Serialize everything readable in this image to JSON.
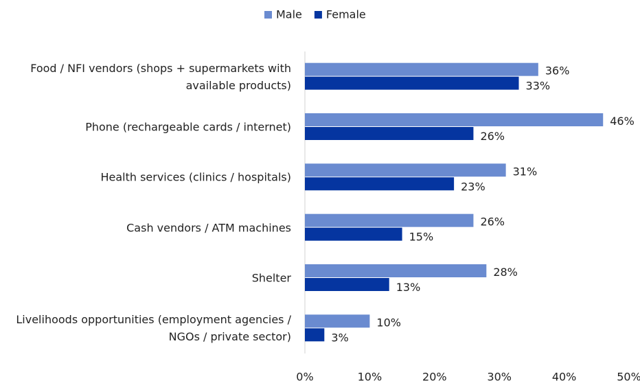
{
  "chart_data": {
    "type": "barh",
    "categories": [
      "Food / NFI vendors (shops + supermarkets with available products)",
      "Phone (rechargeable cards / internet)",
      "Health services (clinics / hospitals)",
      "Cash vendors / ATM machines",
      "Shelter",
      "Livelihoods opportunities (employment agencies / NGOs / private sector)"
    ],
    "series": [
      {
        "name": "Male",
        "color": "#6a8bd0",
        "values": [
          36,
          46,
          31,
          26,
          28,
          10
        ],
        "value_labels": [
          "36%",
          "46%",
          "31%",
          "26%",
          "28%",
          "10%"
        ]
      },
      {
        "name": "Female",
        "color": "#0535a0",
        "values": [
          33,
          26,
          23,
          15,
          13,
          3
        ],
        "value_labels": [
          "33%",
          "26%",
          "23%",
          "15%",
          "13%",
          "3%"
        ]
      }
    ],
    "xlim": [
      0,
      50
    ],
    "xticks": [
      {
        "value": 0,
        "label": "0%"
      },
      {
        "value": 10,
        "label": "10%"
      },
      {
        "value": 20,
        "label": "20%"
      },
      {
        "value": 30,
        "label": "30%"
      },
      {
        "value": 40,
        "label": "40%"
      },
      {
        "value": 50,
        "label": "50%"
      }
    ],
    "legend": "top"
  }
}
